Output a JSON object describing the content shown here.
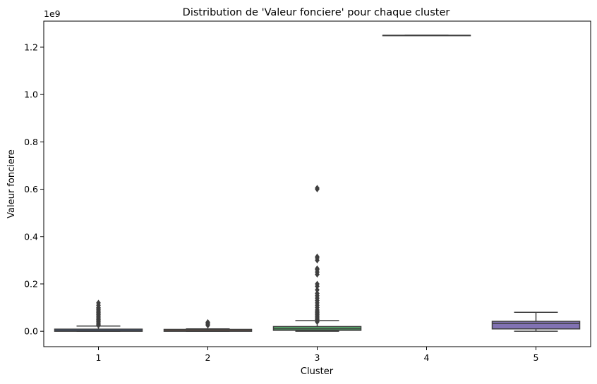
{
  "chart_data": {
    "type": "box",
    "title": "Distribution de 'Valeur fonciere' pour chaque cluster",
    "xlabel": "Cluster",
    "ylabel": "Valeur fonciere",
    "offset_label": "1e9",
    "categories": [
      "1",
      "2",
      "3",
      "4",
      "5"
    ],
    "ylim": [
      -0.065,
      1.31
    ],
    "yticks": [
      0.0,
      0.2,
      0.4,
      0.6,
      0.8,
      1.0,
      1.2
    ],
    "ytick_labels": [
      "0.0",
      "0.2",
      "0.4",
      "0.6",
      "0.8",
      "1.0",
      "1.2"
    ],
    "grid": false,
    "boxes": [
      {
        "cluster": "1",
        "color": "#4a6fb0",
        "whisker_low": 0.0,
        "q1": 0.0,
        "median": 0.003,
        "q3": 0.009,
        "whisker_high": 0.022,
        "outliers": [
          0.025,
          0.03,
          0.035,
          0.04,
          0.045,
          0.05,
          0.055,
          0.06,
          0.065,
          0.07,
          0.075,
          0.08,
          0.085,
          0.09,
          0.095,
          0.1,
          0.11,
          0.12
        ]
      },
      {
        "cluster": "2",
        "color": "#dd8452",
        "whisker_low": 0.0,
        "q1": 0.0,
        "median": 0.003,
        "q3": 0.008,
        "whisker_high": 0.01,
        "outliers": [
          0.025,
          0.03,
          0.035,
          0.038
        ]
      },
      {
        "cluster": "3",
        "color": "#55a868",
        "whisker_low": 0.0,
        "q1": 0.004,
        "median": 0.01,
        "q3": 0.02,
        "whisker_high": 0.045,
        "outliers": [
          0.04,
          0.05,
          0.055,
          0.06,
          0.065,
          0.07,
          0.075,
          0.08,
          0.085,
          0.09,
          0.1,
          0.11,
          0.12,
          0.13,
          0.14,
          0.15,
          0.16,
          0.175,
          0.19,
          0.2,
          0.24,
          0.25,
          0.26,
          0.265,
          0.3,
          0.31,
          0.315,
          0.6,
          0.605
        ]
      },
      {
        "cluster": "4",
        "color": "#c44e52",
        "whisker_low": 1.25,
        "q1": 1.25,
        "median": 1.25,
        "q3": 1.25,
        "whisker_high": 1.25,
        "outliers": []
      },
      {
        "cluster": "5",
        "color": "#8172b3",
        "whisker_low": 0.0,
        "q1": 0.01,
        "median": 0.033,
        "q3": 0.042,
        "whisker_high": 0.08,
        "outliers": []
      }
    ]
  }
}
